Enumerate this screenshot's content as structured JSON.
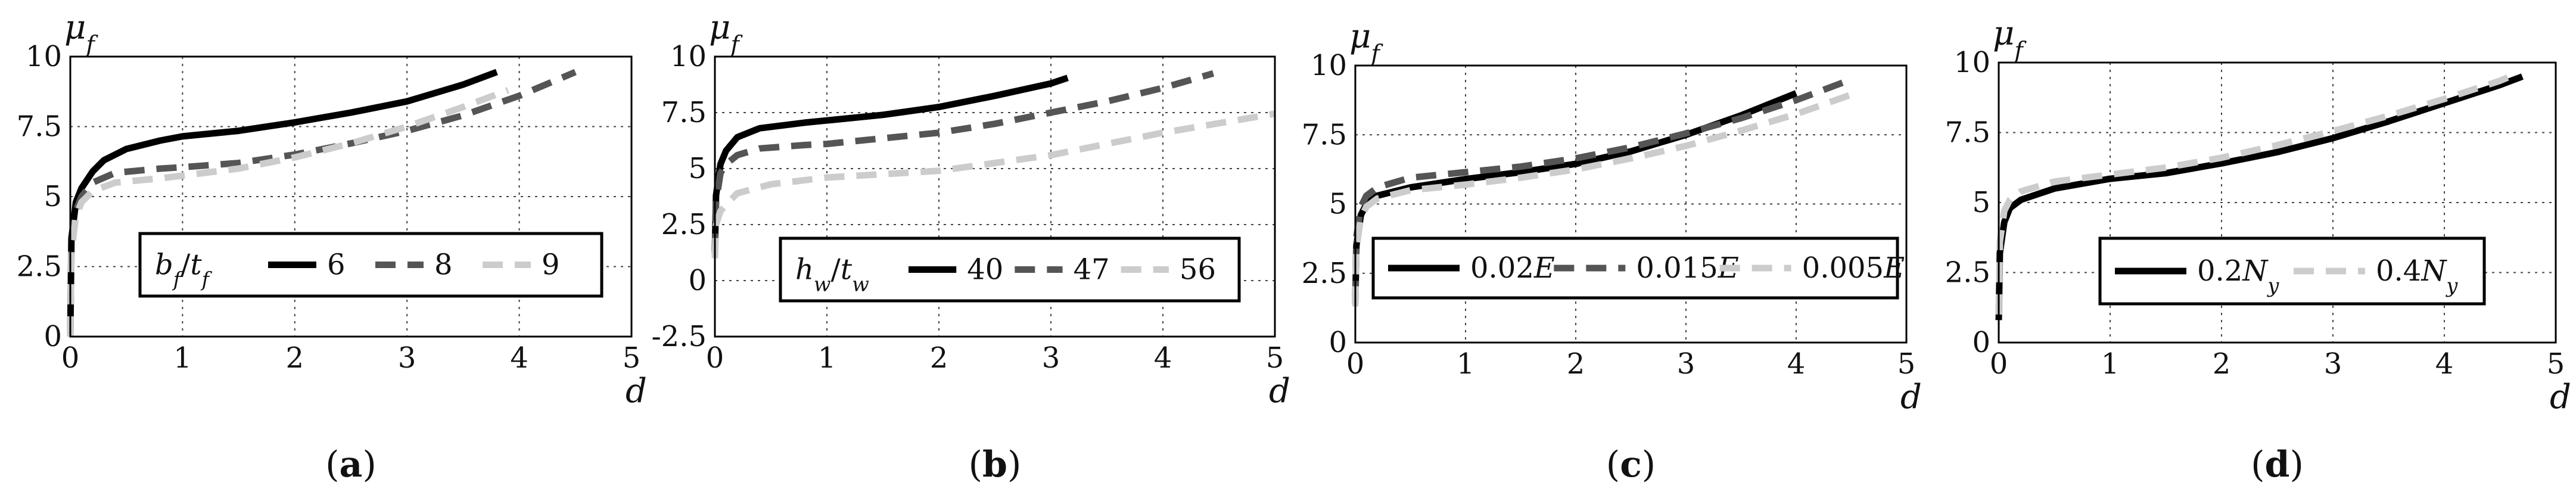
{
  "chart_data": [
    {
      "type": "line",
      "panel_label": "a",
      "xlabel": "d",
      "ylabel": "μ_f",
      "xlim": [
        0,
        5
      ],
      "ylim": [
        0,
        10
      ],
      "xticks": [
        "0",
        "1",
        "2",
        "3",
        "4",
        "5"
      ],
      "yticks": [
        "0",
        "2.5",
        "5",
        "7.5",
        "10"
      ],
      "grid": true,
      "legend_placement": "bottom-right",
      "legend_title": "b_f/t_f",
      "series": [
        {
          "name": "6",
          "color": "#000000",
          "dash": "solid",
          "points": [
            [
              0,
              0
            ],
            [
              0.01,
              3.5
            ],
            [
              0.05,
              4.8
            ],
            [
              0.1,
              5.3
            ],
            [
              0.2,
              5.9
            ],
            [
              0.3,
              6.3
            ],
            [
              0.5,
              6.7
            ],
            [
              0.8,
              7.0
            ],
            [
              1,
              7.15
            ],
            [
              1.5,
              7.35
            ],
            [
              2,
              7.65
            ],
            [
              2.5,
              8.0
            ],
            [
              3,
              8.4
            ],
            [
              3.5,
              9.0
            ],
            [
              3.8,
              9.45
            ]
          ]
        },
        {
          "name": "8",
          "color": "#555555",
          "dash": "dashed",
          "points": [
            [
              0,
              0
            ],
            [
              0.01,
              3.2
            ],
            [
              0.05,
              4.5
            ],
            [
              0.1,
              5.0
            ],
            [
              0.2,
              5.5
            ],
            [
              0.4,
              5.85
            ],
            [
              0.8,
              6.0
            ],
            [
              1,
              6.05
            ],
            [
              1.5,
              6.2
            ],
            [
              2,
              6.5
            ],
            [
              2.5,
              6.9
            ],
            [
              3,
              7.35
            ],
            [
              3.5,
              7.9
            ],
            [
              4,
              8.6
            ],
            [
              4.5,
              9.45
            ]
          ]
        },
        {
          "name": "9",
          "color": "#cccccc",
          "dash": "dashed",
          "points": [
            [
              0,
              0
            ],
            [
              0.01,
              3.0
            ],
            [
              0.05,
              4.3
            ],
            [
              0.1,
              4.8
            ],
            [
              0.2,
              5.2
            ],
            [
              0.4,
              5.5
            ],
            [
              0.8,
              5.65
            ],
            [
              1,
              5.75
            ],
            [
              1.5,
              6.0
            ],
            [
              2,
              6.4
            ],
            [
              2.5,
              6.9
            ],
            [
              3,
              7.5
            ],
            [
              3.5,
              8.2
            ],
            [
              3.9,
              8.8
            ]
          ]
        }
      ]
    },
    {
      "type": "line",
      "panel_label": "b",
      "xlabel": "d",
      "ylabel": "μ_f",
      "xlim": [
        0,
        5
      ],
      "ylim": [
        -2.5,
        10
      ],
      "xticks": [
        "0",
        "1",
        "2",
        "3",
        "4",
        "5"
      ],
      "yticks": [
        "-2.5",
        "0",
        "2.5",
        "5",
        "7.5",
        "10"
      ],
      "grid": true,
      "legend_placement": "bottom-right",
      "legend_title": "h_w/t_w",
      "series": [
        {
          "name": "40",
          "color": "#000000",
          "dash": "solid",
          "points": [
            [
              0,
              1.3
            ],
            [
              0.01,
              3.8
            ],
            [
              0.05,
              5.2
            ],
            [
              0.1,
              5.8
            ],
            [
              0.2,
              6.4
            ],
            [
              0.4,
              6.8
            ],
            [
              0.8,
              7.05
            ],
            [
              1,
              7.15
            ],
            [
              1.5,
              7.4
            ],
            [
              2,
              7.75
            ],
            [
              2.5,
              8.25
            ],
            [
              3,
              8.8
            ],
            [
              3.15,
              9.05
            ]
          ]
        },
        {
          "name": "47",
          "color": "#555555",
          "dash": "dashed",
          "points": [
            [
              0,
              1.2
            ],
            [
              0.01,
              3.5
            ],
            [
              0.05,
              4.8
            ],
            [
              0.1,
              5.2
            ],
            [
              0.2,
              5.6
            ],
            [
              0.4,
              5.9
            ],
            [
              0.8,
              6.05
            ],
            [
              1,
              6.1
            ],
            [
              1.5,
              6.35
            ],
            [
              2,
              6.6
            ],
            [
              2.5,
              7.0
            ],
            [
              3,
              7.5
            ],
            [
              3.5,
              8.0
            ],
            [
              4,
              8.6
            ],
            [
              4.45,
              9.25
            ]
          ]
        },
        {
          "name": "56",
          "color": "#cccccc",
          "dash": "dashed",
          "points": [
            [
              0,
              1.0
            ],
            [
              0.01,
              2.5
            ],
            [
              0.05,
              3.1
            ],
            [
              0.1,
              3.4
            ],
            [
              0.2,
              3.9
            ],
            [
              0.5,
              4.3
            ],
            [
              1,
              4.6
            ],
            [
              2,
              4.9
            ],
            [
              3,
              5.6
            ],
            [
              4,
              6.6
            ],
            [
              5,
              7.45
            ]
          ]
        }
      ]
    },
    {
      "type": "line",
      "panel_label": "c",
      "xlabel": "d",
      "ylabel": "μ_f",
      "xlim": [
        0,
        5
      ],
      "ylim": [
        0,
        10
      ],
      "xticks": [
        "0",
        "1",
        "2",
        "3",
        "4",
        "5"
      ],
      "yticks": [
        "0",
        "2.5",
        "5",
        "7.5",
        "10"
      ],
      "grid": true,
      "legend_placement": "bottom",
      "series": [
        {
          "name": "0.02E",
          "color": "#000000",
          "dash": "solid",
          "points": [
            [
              0,
              1.4
            ],
            [
              0.01,
              3.5
            ],
            [
              0.05,
              4.6
            ],
            [
              0.1,
              5.0
            ],
            [
              0.2,
              5.3
            ],
            [
              0.5,
              5.6
            ],
            [
              1,
              5.9
            ],
            [
              1.5,
              6.15
            ],
            [
              2,
              6.45
            ],
            [
              2.5,
              6.9
            ],
            [
              3,
              7.5
            ],
            [
              3.5,
              8.2
            ],
            [
              4,
              9.0
            ]
          ]
        },
        {
          "name": "0.015E",
          "color": "#555555",
          "dash": "dashed",
          "points": [
            [
              0,
              1.5
            ],
            [
              0.01,
              3.8
            ],
            [
              0.05,
              4.9
            ],
            [
              0.1,
              5.3
            ],
            [
              0.2,
              5.6
            ],
            [
              0.5,
              5.95
            ],
            [
              1,
              6.15
            ],
            [
              1.5,
              6.35
            ],
            [
              2,
              6.65
            ],
            [
              2.5,
              7.05
            ],
            [
              3,
              7.55
            ],
            [
              3.5,
              8.1
            ],
            [
              4,
              8.75
            ],
            [
              4.5,
              9.5
            ]
          ]
        },
        {
          "name": "0.005E",
          "color": "#cccccc",
          "dash": "dashed",
          "points": [
            [
              0,
              1.3
            ],
            [
              0.01,
              3.4
            ],
            [
              0.05,
              4.5
            ],
            [
              0.1,
              4.9
            ],
            [
              0.2,
              5.2
            ],
            [
              0.5,
              5.5
            ],
            [
              1,
              5.7
            ],
            [
              1.5,
              5.95
            ],
            [
              2,
              6.25
            ],
            [
              2.5,
              6.65
            ],
            [
              3,
              7.1
            ],
            [
              3.5,
              7.65
            ],
            [
              4,
              8.25
            ],
            [
              4.5,
              8.95
            ]
          ]
        }
      ]
    },
    {
      "type": "line",
      "panel_label": "d",
      "xlabel": "d",
      "ylabel": "μ_f",
      "xlim": [
        0,
        5
      ],
      "ylim": [
        0,
        10
      ],
      "xticks": [
        "0",
        "1",
        "2",
        "3",
        "4",
        "5"
      ],
      "yticks": [
        "0",
        "2.5",
        "5",
        "7.5",
        "10"
      ],
      "grid": true,
      "legend_placement": "bottom",
      "series": [
        {
          "name": "0.2N_y",
          "color": "#000000",
          "dash": "solid",
          "points": [
            [
              0,
              0.8
            ],
            [
              0.01,
              3.2
            ],
            [
              0.05,
              4.3
            ],
            [
              0.1,
              4.8
            ],
            [
              0.2,
              5.1
            ],
            [
              0.5,
              5.5
            ],
            [
              1,
              5.85
            ],
            [
              1.5,
              6.05
            ],
            [
              2,
              6.4
            ],
            [
              2.5,
              6.8
            ],
            [
              3,
              7.3
            ],
            [
              3.5,
              7.9
            ],
            [
              4,
              8.55
            ],
            [
              4.5,
              9.2
            ],
            [
              4.7,
              9.5
            ]
          ]
        },
        {
          "name": "0.4N_y",
          "color": "#cccccc",
          "dash": "dashed",
          "points": [
            [
              0,
              1.0
            ],
            [
              0.01,
              3.6
            ],
            [
              0.05,
              4.7
            ],
            [
              0.1,
              5.1
            ],
            [
              0.2,
              5.4
            ],
            [
              0.5,
              5.75
            ],
            [
              1,
              6.0
            ],
            [
              1.5,
              6.25
            ],
            [
              2,
              6.6
            ],
            [
              2.5,
              7.05
            ],
            [
              3,
              7.55
            ],
            [
              3.5,
              8.1
            ],
            [
              4,
              8.7
            ],
            [
              4.5,
              9.35
            ],
            [
              4.65,
              9.6
            ]
          ]
        }
      ]
    }
  ]
}
